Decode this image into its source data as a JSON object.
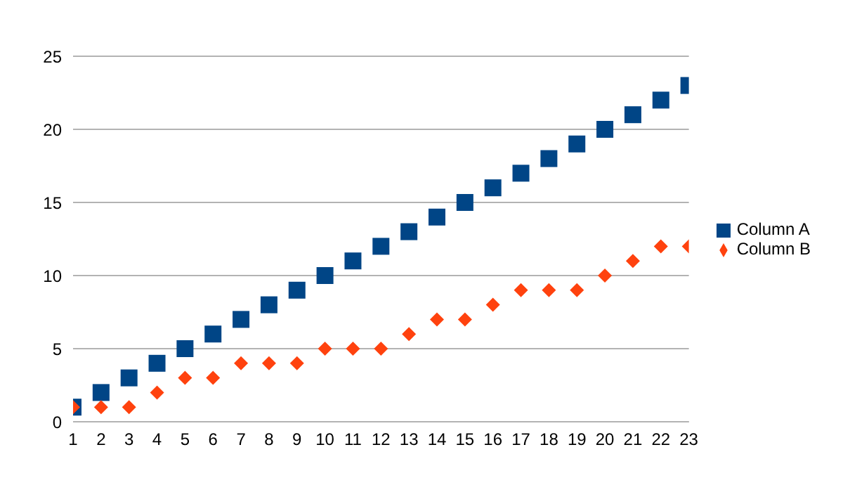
{
  "chart_data": {
    "type": "scatter",
    "x": [
      1,
      2,
      3,
      4,
      5,
      6,
      7,
      8,
      9,
      10,
      11,
      12,
      13,
      14,
      15,
      16,
      17,
      18,
      19,
      20,
      21,
      22,
      23
    ],
    "series": [
      {
        "name": "Column A",
        "color": "#004586",
        "marker": "square",
        "values": [
          1,
          2,
          3,
          4,
          5,
          6,
          7,
          8,
          9,
          10,
          11,
          12,
          13,
          14,
          15,
          16,
          17,
          18,
          19,
          20,
          21,
          22,
          23
        ]
      },
      {
        "name": "Column B",
        "color": "#ff420e",
        "marker": "diamond",
        "values": [
          1,
          1,
          1,
          2,
          3,
          3,
          4,
          4,
          4,
          5,
          5,
          5,
          6,
          7,
          7,
          8,
          9,
          9,
          9,
          10,
          11,
          12,
          12
        ]
      }
    ],
    "xlim": [
      1,
      23
    ],
    "xticks": [
      1,
      2,
      3,
      4,
      5,
      6,
      7,
      8,
      9,
      10,
      11,
      12,
      13,
      14,
      15,
      16,
      17,
      18,
      19,
      20,
      21,
      22,
      23
    ],
    "ylim": [
      0,
      25
    ],
    "yticks": [
      0,
      5,
      10,
      15,
      20,
      25
    ],
    "grid": "y",
    "legend": "right"
  }
}
